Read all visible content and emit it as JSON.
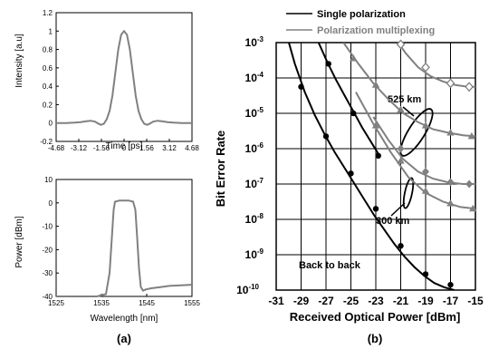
{
  "panel_labels": [
    "(a)",
    "(b)"
  ],
  "chart_data": [
    {
      "type": "line",
      "panel": "(a) top",
      "xlabel": "Time [ps]",
      "ylabel": "Intensity [a.u]",
      "xlim": [
        -4.68,
        4.68
      ],
      "ylim": [
        -0.2,
        1.2
      ],
      "xticks": [
        "-4.68",
        "-3.12",
        "-1.56",
        "0",
        "1.56",
        "3.12",
        "4.68"
      ],
      "yticks": [
        "-0.2",
        "0",
        "0.2",
        "0.4",
        "0.6",
        "0.8",
        "1",
        "1.2"
      ],
      "series": [
        {
          "x": [
            -4.68,
            -4.0,
            -3.4,
            -3.0,
            -2.6,
            -2.3,
            -2.0,
            -1.8,
            -1.6,
            -1.4,
            -1.2,
            -1.0,
            -0.8,
            -0.6,
            -0.4,
            -0.2,
            0.0,
            0.2,
            0.4,
            0.6,
            0.8,
            1.0,
            1.2,
            1.4,
            1.6,
            1.8,
            2.0,
            2.3,
            2.6,
            3.0,
            3.4,
            4.0,
            4.68
          ],
          "y": [
            0,
            0,
            0.005,
            0.01,
            0.02,
            0.025,
            0.015,
            -0.005,
            -0.02,
            -0.01,
            0.04,
            0.13,
            0.3,
            0.55,
            0.8,
            0.96,
            1.0,
            0.96,
            0.8,
            0.55,
            0.3,
            0.13,
            0.04,
            -0.01,
            -0.02,
            -0.005,
            0.015,
            0.025,
            0.02,
            0.01,
            0.005,
            0,
            0
          ],
          "color": "#808080"
        }
      ]
    },
    {
      "type": "line",
      "panel": "(a) bottom",
      "xlabel": "Wavelength [nm]",
      "ylabel": "Power [dBm]",
      "xlim": [
        1525,
        1555
      ],
      "ylim": [
        -40,
        10
      ],
      "xticks": [
        "1525",
        "1535",
        "1545",
        "1555"
      ],
      "yticks": [
        "10",
        "0",
        "-10",
        "-20",
        "-30",
        "-40"
      ],
      "series": [
        {
          "x": [
            1525,
            1530,
            1534,
            1536,
            1536.8,
            1537.3,
            1537.7,
            1538,
            1539,
            1540,
            1541,
            1542,
            1542.5,
            1542.9,
            1543.3,
            1543.7,
            1544.2,
            1544.8,
            1546,
            1548,
            1550,
            1552,
            1555
          ],
          "y": [
            -41,
            -41,
            -40.5,
            -39,
            -30,
            -15,
            -3,
            0.5,
            1,
            1,
            1,
            0.5,
            -3,
            -15,
            -28,
            -36,
            -37.5,
            -37,
            -36.5,
            -36,
            -35.5,
            -35.3,
            -35
          ],
          "color": "#808080"
        }
      ]
    },
    {
      "type": "scatter",
      "panel": "(b)",
      "xlabel": "Received Optical Power [dBm]",
      "ylabel": "Bit Error Rate",
      "xlim": [
        -31,
        -15
      ],
      "ylim_exp": [
        -10,
        -3
      ],
      "log_y": true,
      "grid": true,
      "xticks": [
        "-31",
        "-29",
        "-27",
        "-25",
        "-23",
        "-21",
        "-19",
        "-17",
        "-15"
      ],
      "yticks": [
        "10-3",
        "10-4",
        "10-5",
        "10-6",
        "10-7",
        "10-8",
        "10-9",
        "10-10"
      ],
      "legend": [
        {
          "label": "Single polarization",
          "color": "#000000"
        },
        {
          "label": "Polarization multiplexing",
          "color": "#808080"
        }
      ],
      "annotations": [
        "525 km",
        "300 km",
        "Back to back"
      ],
      "series": [
        {
          "group": "Back to back",
          "color": "#000000",
          "marker": "circle",
          "x": [
            -29,
            -27,
            -25,
            -23,
            -21,
            -19,
            -17
          ],
          "y_exp": [
            -4.25,
            -5.65,
            -6.7,
            -7.7,
            -8.75,
            -9.55,
            -9.85
          ],
          "curve_x": [
            -30.3,
            -29.5,
            -28.7,
            -27.9,
            -27.1,
            -26.3,
            -25.5,
            -24.7,
            -23.9,
            -23.1,
            -22.3,
            -21.5,
            -20.7,
            -19.9,
            -19.1,
            -18.3,
            -17.5,
            -16.7
          ],
          "curve_y_exp": [
            -2.6,
            -3.6,
            -4.4,
            -5.05,
            -5.6,
            -6.1,
            -6.55,
            -7.0,
            -7.45,
            -7.9,
            -8.3,
            -8.7,
            -9.05,
            -9.35,
            -9.6,
            -9.8,
            -9.92,
            -10.0
          ]
        },
        {
          "group": "300 km",
          "color": "#000000",
          "marker": "circle",
          "x": [
            -26.8,
            -24.8,
            -22.8
          ],
          "y_exp": [
            -3.6,
            -5.0,
            -6.2
          ],
          "curve_x": [
            -27.6,
            -26.9,
            -26.2,
            -25.5,
            -24.8,
            -24.1,
            -23.4,
            -22.7
          ],
          "curve_y_exp": [
            -3.0,
            -3.55,
            -4.05,
            -4.5,
            -4.95,
            -5.4,
            -5.8,
            -6.2
          ]
        },
        {
          "group": "300 km",
          "color": "#808080",
          "marker": "triangle",
          "x": [
            -23,
            -21,
            -19,
            -17,
            -15.2
          ],
          "y_exp": [
            -5.35,
            -6.35,
            -7.2,
            -7.55,
            -7.7
          ],
          "curve_x": [
            -24.6,
            -23.2,
            -21.8,
            -20.4,
            -19,
            -17.6,
            -16.2,
            -15
          ],
          "curve_y_exp": [
            -4.4,
            -5.3,
            -6.1,
            -6.8,
            -7.25,
            -7.5,
            -7.65,
            -7.7
          ]
        },
        {
          "group": "300 km",
          "color": "#808080",
          "marker": "diamond",
          "x": [
            -21,
            -19,
            -17,
            -15.5
          ],
          "y_exp": [
            -6.0,
            -6.65,
            -6.95,
            -7.0
          ],
          "curve_x": [
            -23.2,
            -22,
            -20.8,
            -19.6,
            -18.4,
            -17.2,
            -16,
            -15
          ],
          "curve_y_exp": [
            -5.1,
            -5.75,
            -6.3,
            -6.65,
            -6.85,
            -6.95,
            -7.0,
            -7.0
          ]
        },
        {
          "group": "525 km",
          "color": "#808080",
          "marker": "triangle",
          "x": [
            -24.8,
            -23,
            -21,
            -19,
            -17,
            -15.3
          ],
          "y_exp": [
            -3.45,
            -4.2,
            -4.9,
            -5.35,
            -5.55,
            -5.65
          ],
          "curve_x": [
            -25.6,
            -24.4,
            -23.2,
            -22,
            -20.8,
            -19.6,
            -18.4,
            -17.2,
            -16,
            -15
          ],
          "curve_y_exp": [
            -3.0,
            -3.6,
            -4.15,
            -4.6,
            -5.0,
            -5.25,
            -5.45,
            -5.55,
            -5.62,
            -5.65
          ]
        },
        {
          "group": "525 km",
          "color": "#808080",
          "marker": "diamond-open",
          "x": [
            -21,
            -19,
            -17,
            -15.5
          ],
          "y_exp": [
            -3.05,
            -3.7,
            -4.15,
            -4.25
          ],
          "curve_x": [
            -21.6,
            -20.6,
            -19.6,
            -18.6,
            -17.6,
            -16.6,
            -15.6,
            -15
          ],
          "curve_y_exp": [
            -2.8,
            -3.3,
            -3.7,
            -3.95,
            -4.1,
            -4.2,
            -4.25,
            -4.25
          ]
        }
      ]
    }
  ]
}
